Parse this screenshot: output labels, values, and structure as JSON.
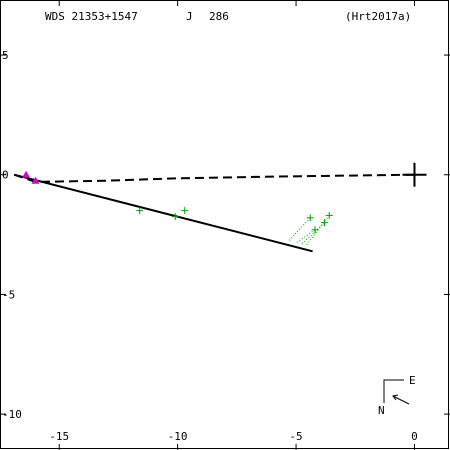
{
  "header": {
    "wds": "WDS 21353+1547",
    "discoverer": "J",
    "number": "286",
    "reference": "(Hrt2017a)"
  },
  "compass": {
    "east_label": "E",
    "north_label": "N"
  },
  "chart_data": {
    "type": "scatter",
    "title": "",
    "xlabel": "",
    "ylabel": "",
    "xlim": [
      -17.5,
      1.5
    ],
    "ylim": [
      -11.5,
      7.3
    ],
    "x_ticks": [
      -15,
      -10,
      -5,
      0
    ],
    "y_ticks": [
      5,
      0,
      -5,
      -10
    ],
    "x_tick_labels": [
      "-15",
      "-10",
      "-5",
      "0"
    ],
    "y_tick_labels": [
      "5",
      "0",
      "-5",
      "-10"
    ],
    "grid": false,
    "primary_star": {
      "x": 0,
      "y": 0
    },
    "series": [
      {
        "marker": "plus",
        "color": "#00a000",
        "points": [
          {
            "x": -11.6,
            "y": -1.5
          },
          {
            "x": -10.1,
            "y": -1.75
          },
          {
            "x": -9.7,
            "y": -1.5
          },
          {
            "x": -4.4,
            "y": -1.8
          },
          {
            "x": -4.2,
            "y": -2.3
          },
          {
            "x": -3.8,
            "y": -2.0
          },
          {
            "x": -3.6,
            "y": -1.7
          }
        ]
      },
      {
        "marker": "triangle",
        "color": "#cc00cc",
        "points": [
          {
            "x": -16.4,
            "y": 0.0
          },
          {
            "x": -16.0,
            "y": -0.25
          }
        ]
      }
    ],
    "residual_lines": [
      {
        "from": {
          "x": -4.4,
          "y": -1.8
        },
        "to": {
          "x": -5.3,
          "y": -2.75
        }
      },
      {
        "from": {
          "x": -4.2,
          "y": -2.3
        },
        "to": {
          "x": -5.0,
          "y": -2.85
        }
      },
      {
        "from": {
          "x": -3.8,
          "y": -2.0
        },
        "to": {
          "x": -4.8,
          "y": -2.95
        }
      },
      {
        "from": {
          "x": -3.6,
          "y": -1.7
        },
        "to": {
          "x": -4.6,
          "y": -3.0
        }
      }
    ],
    "orbit_solid": [
      {
        "x": -16.9,
        "y": 0.0
      },
      {
        "x": -4.3,
        "y": -3.2
      }
    ],
    "line_of_nodes": [
      {
        "x": -16.9,
        "y": 0.0
      },
      {
        "x": -16.0,
        "y": -0.3
      },
      {
        "x": -13.0,
        "y": -0.25
      },
      {
        "x": -10.0,
        "y": -0.15
      },
      {
        "x": -6.0,
        "y": -0.08
      },
      {
        "x": 0.0,
        "y": 0.0
      }
    ]
  }
}
